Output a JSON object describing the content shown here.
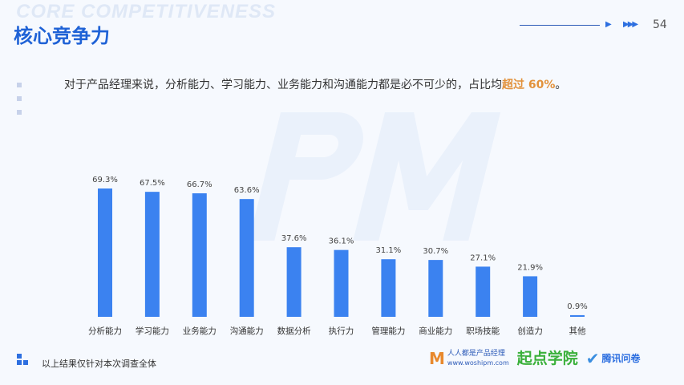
{
  "header": {
    "bg_word": "CORE COMPETITIVENESS",
    "title": "核心竞争力",
    "page": "54"
  },
  "intro": {
    "text": "对于产品经理来说，分析能力、学习能力、业务能力和沟通能力都是必不可少的，占比均",
    "highlight": "超过 60%",
    "end": "。"
  },
  "watermark": "PM",
  "footer": {
    "note": "以上结果仅针对本次调查全体"
  },
  "logos": {
    "woshipm": "人人都是产品经理",
    "woshipm_url": "www.woshipm.com",
    "qidian": "起点学院",
    "tencent": "腾讯问卷"
  },
  "colors": {
    "bar": "#3b82f0",
    "accent": "#1f62d6",
    "highlight": "#e2913a"
  },
  "chart_data": {
    "type": "bar",
    "title": "",
    "xlabel": "",
    "ylabel": "",
    "ylim": [
      0,
      100
    ],
    "categories": [
      "分析能力",
      "学习能力",
      "业务能力",
      "沟通能力",
      "数据分析",
      "执行力",
      "管理能力",
      "商业能力",
      "职场技能",
      "创造力",
      "其他"
    ],
    "values": [
      69.3,
      67.5,
      66.7,
      63.6,
      37.6,
      36.1,
      31.1,
      30.7,
      27.1,
      21.9,
      0.9
    ],
    "labels": [
      "69.3%",
      "67.5%",
      "66.7%",
      "63.6%",
      "37.6%",
      "36.1%",
      "31.1%",
      "30.7%",
      "27.1%",
      "21.9%",
      "0.9%"
    ]
  }
}
